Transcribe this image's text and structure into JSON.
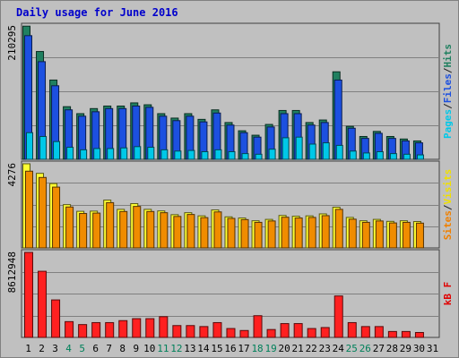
{
  "chart_data": {
    "type": "bar",
    "title": "Daily usage for June 2016",
    "categories": [
      "1",
      "2",
      "3",
      "4",
      "5",
      "6",
      "7",
      "8",
      "9",
      "10",
      "11",
      "12",
      "13",
      "14",
      "15",
      "16",
      "17",
      "18",
      "19",
      "20",
      "21",
      "22",
      "23",
      "24",
      "25",
      "26",
      "27",
      "28",
      "29",
      "30",
      "31"
    ],
    "weekend_days": [
      "4",
      "5",
      "11",
      "12",
      "18",
      "19",
      "25",
      "26"
    ],
    "panels": [
      {
        "id": "top",
        "ymax_label": "210295",
        "ymax": 210295,
        "legend": [
          {
            "text": "Pages",
            "color": "#00c8e8"
          },
          {
            "text": "/",
            "color": "#202020"
          },
          {
            "text": "Files",
            "color": "#1c50e0"
          },
          {
            "text": "/",
            "color": "#202020"
          },
          {
            "text": "Hits",
            "color": "#208060"
          }
        ],
        "series": [
          {
            "name": "Hits",
            "color": "#208060",
            "values": [
              210000,
              170000,
              125000,
              83000,
              72000,
              80000,
              84000,
              84000,
              89000,
              86000,
              72000,
              65000,
              72000,
              63000,
              78000,
              58000,
              45000,
              38000,
              55000,
              77000,
              77000,
              58000,
              62000,
              138000,
              52000,
              36000,
              44000,
              36000,
              32000,
              29000,
              0
            ]
          },
          {
            "name": "Files",
            "color": "#1c50e0",
            "values": [
              195000,
              154000,
              116000,
              78000,
              68000,
              75000,
              80000,
              80000,
              84000,
              82000,
              68000,
              61000,
              68000,
              59000,
              73000,
              54000,
              42000,
              35000,
              51000,
              72000,
              72000,
              54000,
              58000,
              125000,
              49000,
              33000,
              41000,
              33000,
              29000,
              26000,
              0
            ]
          },
          {
            "name": "Pages",
            "color": "#00c8e8",
            "values": [
              42000,
              36000,
              28000,
              19000,
              15000,
              17000,
              17000,
              18000,
              20000,
              19000,
              15000,
              13000,
              14000,
              12000,
              15000,
              12000,
              9000,
              8000,
              16000,
              34000,
              35000,
              24000,
              26000,
              22000,
              13000,
              10000,
              12000,
              9000,
              8000,
              7000,
              0
            ]
          }
        ]
      },
      {
        "id": "middle",
        "ymax_label": "4276",
        "ymax": 4276,
        "legend": [
          {
            "text": "Sites",
            "color": "#f08000"
          },
          {
            "text": "/",
            "color": "#202020"
          },
          {
            "text": "Visits",
            "color": "#f0e000"
          }
        ],
        "series": [
          {
            "name": "Visits",
            "color": "#ffff33",
            "values": [
              4276,
              3790,
              3270,
              2200,
              1860,
              1870,
              2430,
              1960,
              2250,
              1960,
              1880,
              1690,
              1790,
              1630,
              1930,
              1580,
              1520,
              1380,
              1450,
              1650,
              1610,
              1630,
              1730,
              2070,
              1550,
              1380,
              1450,
              1350,
              1380,
              1340,
              0
            ]
          },
          {
            "name": "Sites",
            "color": "#f08c00",
            "values": [
              3900,
              3580,
              3090,
              2080,
              1750,
              1770,
              2300,
              1850,
              2110,
              1850,
              1790,
              1600,
              1700,
              1540,
              1830,
              1500,
              1440,
              1300,
              1370,
              1560,
              1520,
              1550,
              1640,
              1960,
              1460,
              1300,
              1370,
              1270,
              1300,
              1260,
              0
            ]
          }
        ]
      },
      {
        "id": "bottom",
        "ymax_label": "8612948",
        "ymax": 8612948,
        "legend": [
          {
            "text": "kB F",
            "color": "#e00000"
          }
        ],
        "series": [
          {
            "name": "kB F",
            "color": "#ff2020",
            "values": [
              8612948,
              6700000,
              3800000,
              1600000,
              1300000,
              1500000,
              1500000,
              1700000,
              1900000,
              1900000,
              2100000,
              1200000,
              1200000,
              1100000,
              1500000,
              900000,
              700000,
              2200000,
              800000,
              1400000,
              1400000,
              900000,
              1000000,
              4200000,
              1500000,
              1100000,
              1100000,
              600000,
              600000,
              500000,
              0
            ]
          }
        ]
      }
    ]
  }
}
